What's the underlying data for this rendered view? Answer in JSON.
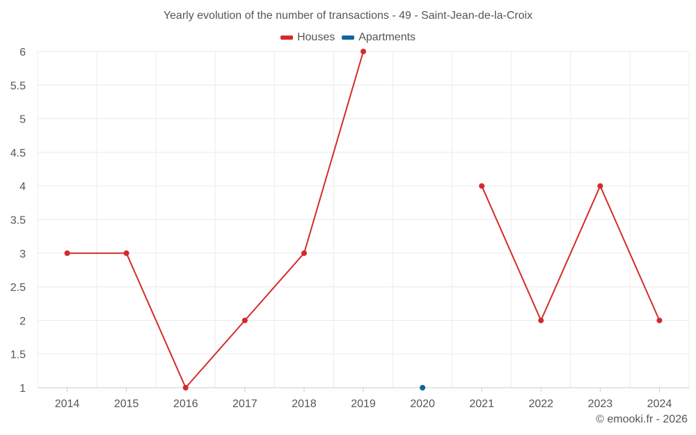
{
  "title": "Yearly evolution of the number of transactions - 49 - Saint-Jean-de-la-Croix",
  "credit": "© emooki.fr - 2026",
  "chart_data": {
    "type": "line",
    "title": "Yearly evolution of the number of transactions - 49 - Saint-Jean-de-la-Croix",
    "xlabel": "",
    "ylabel": "",
    "categories": [
      "2014",
      "2015",
      "2016",
      "2017",
      "2018",
      "2019",
      "2020",
      "2021",
      "2022",
      "2023",
      "2024"
    ],
    "ylim": [
      1,
      6
    ],
    "yticks": [
      "1",
      "1.5",
      "2",
      "2.5",
      "3",
      "3.5",
      "4",
      "4.5",
      "5",
      "5.5",
      "6"
    ],
    "grid": true,
    "legend_position": "top-center",
    "series": [
      {
        "name": "Houses",
        "color": "#d42a2a",
        "values": [
          3,
          3,
          1,
          2,
          3,
          6,
          null,
          4,
          2,
          4,
          2
        ]
      },
      {
        "name": "Apartments",
        "color": "#10659a",
        "values": [
          null,
          null,
          null,
          null,
          null,
          null,
          1,
          null,
          null,
          null,
          null
        ]
      }
    ]
  }
}
